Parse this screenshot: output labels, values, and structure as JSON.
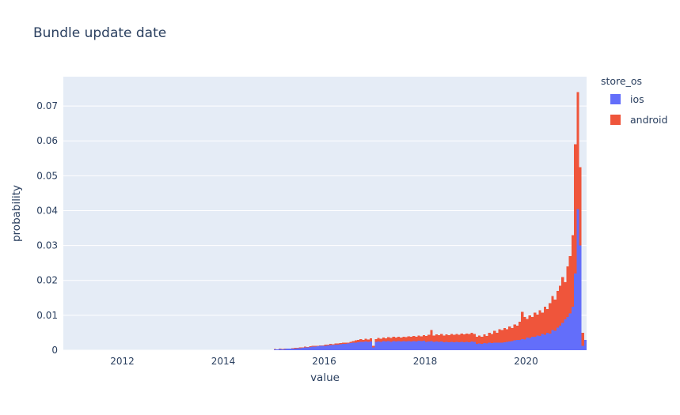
{
  "page": {
    "background": "#ffffff"
  },
  "chart_data": {
    "type": "bar",
    "subtype": "overlaid-probability-histogram",
    "title": "Bundle update date",
    "xlabel": "value",
    "ylabel": "probability",
    "plot_bg": "#e5ecf6",
    "grid_color": "#ffffff",
    "text_color": "#2a3f5f",
    "grid": "horizontal-only",
    "legend_position": "right-top",
    "xlim": [
      2010.831,
      2021.2
    ],
    "ylim": [
      0,
      0.0784
    ],
    "x_ticks": {
      "values": [
        2012,
        2014,
        2016,
        2018,
        2020
      ],
      "labels": [
        "2012",
        "2014",
        "2016",
        "2018",
        "2020"
      ]
    },
    "y_ticks": {
      "values": [
        0,
        0.01,
        0.02,
        0.03,
        0.04,
        0.05,
        0.06,
        0.07
      ],
      "labels": [
        "0",
        "0.01",
        "0.02",
        "0.03",
        "0.04",
        "0.05",
        "0.06",
        "0.07"
      ]
    },
    "legend": {
      "title": "store_os"
    },
    "bin_start": 2015.0,
    "bin_width": 0.05,
    "series": [
      {
        "name": "ios",
        "color": "#636efa",
        "layer": 1,
        "values": [
          0.0002,
          0.0002,
          0.0003,
          0.0002,
          0.0003,
          0.0004,
          0.0004,
          0.0005,
          0.0005,
          0.0006,
          0.0006,
          0.0007,
          0.0008,
          0.0008,
          0.0009,
          0.001,
          0.001,
          0.0011,
          0.0012,
          0.0012,
          0.0013,
          0.0014,
          0.0015,
          0.0015,
          0.0016,
          0.0016,
          0.0017,
          0.0018,
          0.0018,
          0.0019,
          0.002,
          0.0021,
          0.0022,
          0.0023,
          0.0024,
          0.0024,
          0.0025,
          0.0024,
          0.0025,
          0.0008,
          0.0024,
          0.0025,
          0.0024,
          0.0026,
          0.0025,
          0.0026,
          0.0024,
          0.0026,
          0.0025,
          0.0026,
          0.0025,
          0.0026,
          0.0025,
          0.0026,
          0.0025,
          0.0026,
          0.0025,
          0.0027,
          0.0026,
          0.0027,
          0.0024,
          0.0025,
          0.0026,
          0.0024,
          0.0025,
          0.0024,
          0.0025,
          0.0023,
          0.0024,
          0.0023,
          0.0024,
          0.0023,
          0.0024,
          0.0023,
          0.0024,
          0.0023,
          0.0024,
          0.0023,
          0.0025,
          0.0024,
          0.0018,
          0.0019,
          0.0018,
          0.002,
          0.0019,
          0.0021,
          0.002,
          0.0022,
          0.0021,
          0.0022,
          0.0022,
          0.0023,
          0.0024,
          0.0025,
          0.0026,
          0.0028,
          0.003,
          0.0029,
          0.0032,
          0.0031,
          0.0036,
          0.0035,
          0.0039,
          0.0038,
          0.0042,
          0.0041,
          0.0046,
          0.0044,
          0.005,
          0.0048,
          0.0058,
          0.0055,
          0.0065,
          0.007,
          0.0078,
          0.0088,
          0.0095,
          0.0105,
          0.0125,
          0.022,
          0.0405,
          0.03,
          0.0012,
          0.003
        ]
      },
      {
        "name": "android",
        "color": "#EF553B",
        "layer": 0,
        "values": [
          0.0003,
          0.0002,
          0.0004,
          0.0003,
          0.0004,
          0.0005,
          0.0005,
          0.0006,
          0.0007,
          0.0007,
          0.0008,
          0.0008,
          0.001,
          0.0009,
          0.0011,
          0.0012,
          0.0012,
          0.0013,
          0.0014,
          0.0014,
          0.0016,
          0.0016,
          0.0018,
          0.0017,
          0.0019,
          0.0019,
          0.002,
          0.0021,
          0.0022,
          0.0022,
          0.0024,
          0.0026,
          0.0028,
          0.003,
          0.0032,
          0.003,
          0.0033,
          0.0031,
          0.0034,
          0.0012,
          0.0032,
          0.0035,
          0.0033,
          0.0036,
          0.0034,
          0.0037,
          0.0035,
          0.0038,
          0.0036,
          0.0038,
          0.0036,
          0.0039,
          0.0037,
          0.004,
          0.0038,
          0.0041,
          0.0039,
          0.0042,
          0.004,
          0.0043,
          0.0041,
          0.0044,
          0.0058,
          0.0042,
          0.0045,
          0.0043,
          0.0046,
          0.0042,
          0.0045,
          0.0043,
          0.0046,
          0.0044,
          0.0047,
          0.0044,
          0.0048,
          0.0045,
          0.0048,
          0.0046,
          0.005,
          0.0047,
          0.0038,
          0.0042,
          0.0039,
          0.0045,
          0.0041,
          0.005,
          0.0046,
          0.0055,
          0.005,
          0.006,
          0.0058,
          0.0064,
          0.006,
          0.0068,
          0.0064,
          0.0074,
          0.007,
          0.0082,
          0.011,
          0.0095,
          0.009,
          0.01,
          0.0095,
          0.0108,
          0.0102,
          0.0115,
          0.0108,
          0.0125,
          0.0118,
          0.0135,
          0.0155,
          0.0145,
          0.017,
          0.0185,
          0.021,
          0.0195,
          0.024,
          0.027,
          0.033,
          0.059,
          0.074,
          0.0525,
          0.005,
          0.0005
        ]
      }
    ]
  }
}
